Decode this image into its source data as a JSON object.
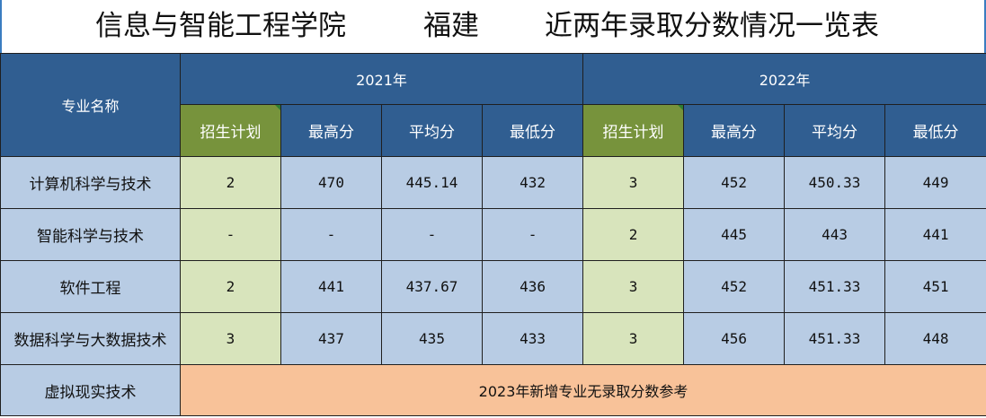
{
  "title": {
    "college": "信息与智能工程学院",
    "province": "福建",
    "subject": "近两年录取分数情况一览表"
  },
  "table": {
    "major_header": "专业名称",
    "years": [
      "2021年",
      "2022年"
    ],
    "columns": [
      "招生计划",
      "最高分",
      "平均分",
      "最低分"
    ],
    "rows": [
      {
        "major": "计算机科学与技术",
        "y2021": [
          "2",
          "470",
          "445.14",
          "432"
        ],
        "y2022": [
          "3",
          "452",
          "450.33",
          "449"
        ]
      },
      {
        "major": "智能科学与技术",
        "y2021": [
          "-",
          "-",
          "-",
          "-"
        ],
        "y2022": [
          "2",
          "445",
          "443",
          "441"
        ]
      },
      {
        "major": "软件工程",
        "y2021": [
          "2",
          "441",
          "437.67",
          "436"
        ],
        "y2022": [
          "3",
          "452",
          "451.33",
          "451"
        ]
      },
      {
        "major": "数据科学与大数据技术",
        "y2021": [
          "3",
          "437",
          "435",
          "433"
        ],
        "y2022": [
          "3",
          "456",
          "451.33",
          "448"
        ]
      }
    ],
    "new_major": {
      "major": "虚拟现实技术",
      "note": "2023年新增专业无录取分数参考"
    }
  }
}
